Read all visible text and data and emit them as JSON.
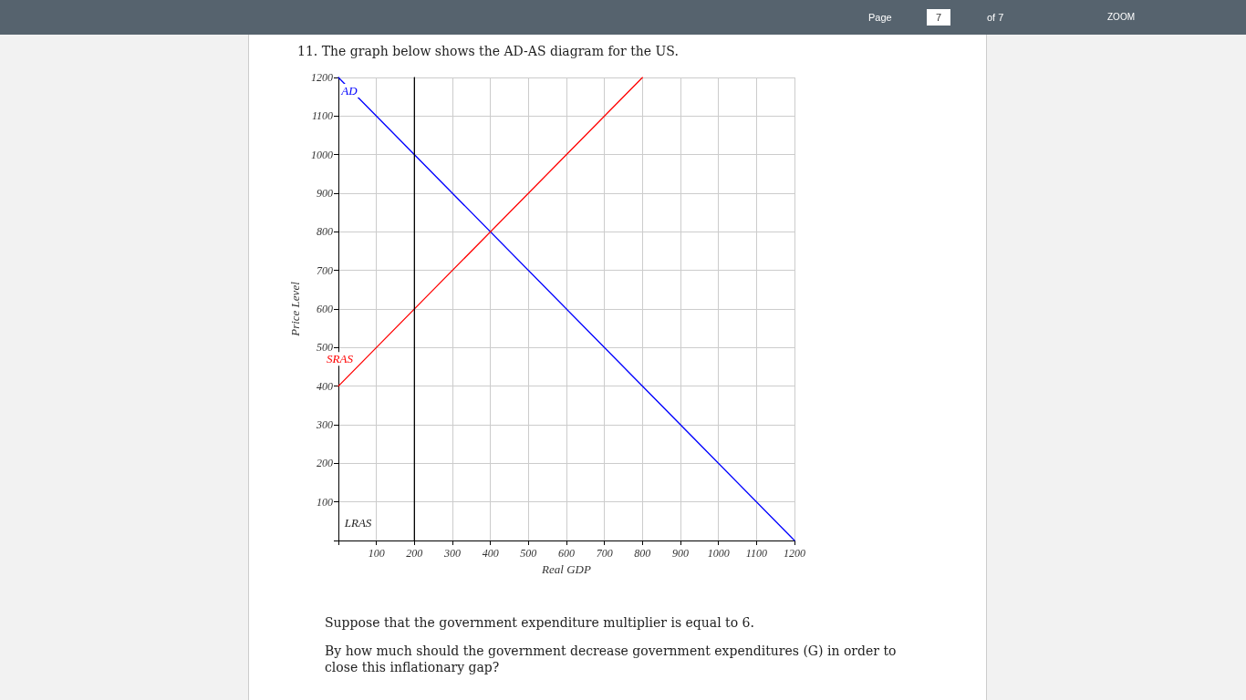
{
  "chart_data": {
    "type": "line",
    "title": "11. The graph below shows the AD-AS diagram for the US.",
    "xlabel": "Real GDP",
    "ylabel": "Price Level",
    "xlim": [
      0,
      1200
    ],
    "ylim": [
      0,
      1200
    ],
    "xticks": [
      {
        "value": 0,
        "label": null
      },
      100,
      200,
      300,
      400,
      500,
      600,
      700,
      800,
      900,
      1000,
      1100,
      1200
    ],
    "yticks": [
      {
        "value": 0,
        "label": null
      },
      100,
      200,
      300,
      400,
      500,
      600,
      700,
      800,
      900,
      1000,
      1100,
      1200
    ],
    "grid": true,
    "legend": false,
    "marker": "none",
    "line_style": "solid",
    "series": [
      {
        "name": "AD",
        "color": "#0000ff",
        "x": [
          0,
          1200
        ],
        "values": [
          1200,
          0
        ]
      },
      {
        "name": "SRAS",
        "color": "#ff0000",
        "x": [
          0,
          800
        ],
        "values": [
          400,
          1200
        ]
      },
      {
        "name": "LRAS",
        "color": "#000000",
        "x": [
          200,
          200
        ],
        "values": [
          0,
          1200
        ]
      }
    ],
    "annotations": [
      "Page",
      "7",
      "of 7",
      "ZOOM",
      "Suppose that the government expenditure multiplier is equal to 6.",
      "By how much should the government decrease government expenditures (G) in order to close this inflationary gap?"
    ]
  }
}
